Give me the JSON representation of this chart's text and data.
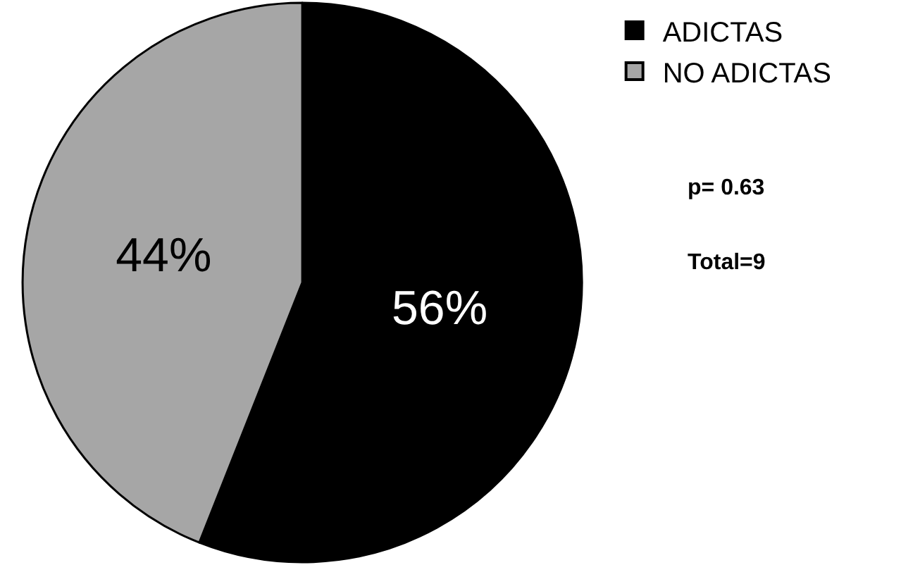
{
  "chart_data": {
    "type": "pie",
    "categories": [
      "ADICTAS",
      "NO ADICTAS"
    ],
    "values": [
      56,
      44
    ],
    "colors": [
      "#000000",
      "#a6a6a6"
    ],
    "value_labels": [
      "56%",
      "44%"
    ],
    "legend": "top right",
    "annotations": [
      "p= 0.63",
      "Total=9"
    ]
  }
}
